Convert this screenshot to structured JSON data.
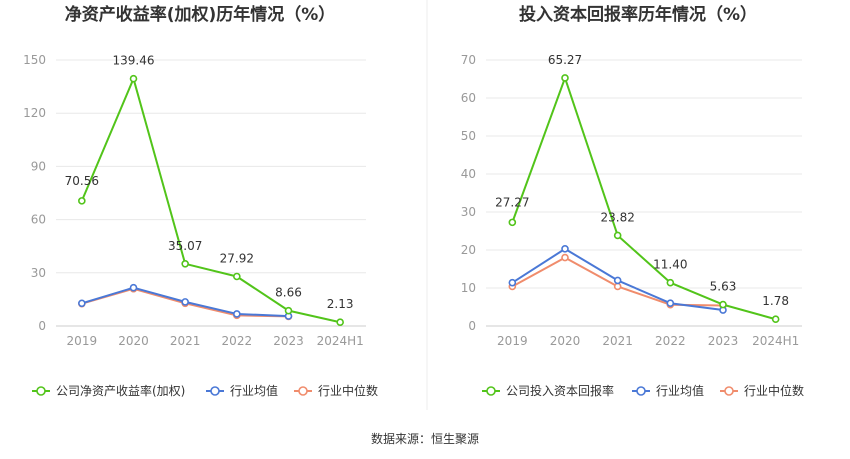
{
  "source": "数据来源：恒生聚源",
  "chart_data": [
    {
      "type": "line",
      "title": "净资产收益率(加权)历年情况（%）",
      "categories": [
        "2019",
        "2020",
        "2021",
        "2022",
        "2023",
        "2024H1"
      ],
      "ylim": [
        0,
        150
      ],
      "yticks": [
        0,
        30,
        60,
        90,
        120,
        150
      ],
      "grid": true,
      "legend_position": "bottom",
      "series": [
        {
          "name": "公司净资产收益率(加权)",
          "color": "#52c41a",
          "values": [
            70.56,
            139.46,
            35.07,
            27.92,
            8.66,
            2.13
          ],
          "labels": [
            "70.56",
            "139.46",
            "35.07",
            "27.92",
            "8.66",
            "2.13"
          ]
        },
        {
          "name": "行业均值",
          "color": "#4a78d6",
          "values": [
            12.8,
            21.6,
            13.6,
            6.8,
            5.6,
            null
          ]
        },
        {
          "name": "行业中位数",
          "color": "#f08c6c",
          "values": [
            12.6,
            21.0,
            12.8,
            6.0,
            5.4,
            null
          ]
        }
      ]
    },
    {
      "type": "line",
      "title": "投入资本回报率历年情况（%）",
      "categories": [
        "2019",
        "2020",
        "2021",
        "2022",
        "2023",
        "2024H1"
      ],
      "ylim": [
        0,
        70
      ],
      "yticks": [
        0,
        10,
        20,
        30,
        40,
        50,
        60,
        70
      ],
      "grid": true,
      "legend_position": "bottom",
      "series": [
        {
          "name": "公司投入资本回报率",
          "color": "#52c41a",
          "values": [
            27.27,
            65.27,
            23.82,
            11.4,
            5.63,
            1.78
          ],
          "labels": [
            "27.27",
            "65.27",
            "23.82",
            "11.40",
            "5.63",
            "1.78"
          ]
        },
        {
          "name": "行业均值",
          "color": "#4a78d6",
          "values": [
            11.4,
            20.3,
            12.0,
            6.0,
            4.2,
            null
          ]
        },
        {
          "name": "行业中位数",
          "color": "#f08c6c",
          "values": [
            10.4,
            18.0,
            10.4,
            5.6,
            5.4,
            null
          ]
        }
      ]
    }
  ]
}
